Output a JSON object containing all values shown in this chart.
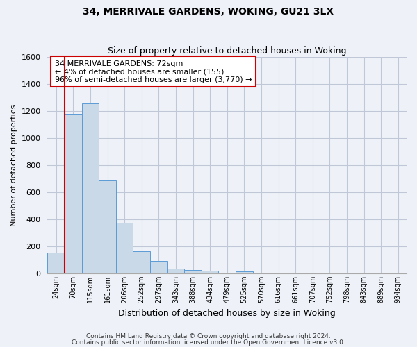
{
  "title": "34, MERRIVALE GARDENS, WOKING, GU21 3LX",
  "subtitle": "Size of property relative to detached houses in Woking",
  "xlabel": "Distribution of detached houses by size in Woking",
  "ylabel": "Number of detached properties",
  "footer_line1": "Contains HM Land Registry data © Crown copyright and database right 2024.",
  "footer_line2": "Contains public sector information licensed under the Open Government Licence v3.0.",
  "bin_labels": [
    "24sqm",
    "70sqm",
    "115sqm",
    "161sqm",
    "206sqm",
    "252sqm",
    "297sqm",
    "343sqm",
    "388sqm",
    "434sqm",
    "479sqm",
    "525sqm",
    "570sqm",
    "616sqm",
    "661sqm",
    "707sqm",
    "752sqm",
    "798sqm",
    "843sqm",
    "889sqm",
    "934sqm"
  ],
  "bar_values": [
    155,
    1180,
    1255,
    685,
    375,
    165,
    90,
    35,
    25,
    20,
    0,
    15,
    0,
    0,
    0,
    0,
    0,
    0,
    0,
    0,
    0
  ],
  "bar_color": "#c9d9e8",
  "bar_edge_color": "#5b9bd5",
  "grid_color": "#c0c8d8",
  "bg_color": "#eef2f8",
  "marker_line_color": "#cc0000",
  "annotation_line1": "34 MERRIVALE GARDENS: 72sqm",
  "annotation_line2": "← 4% of detached houses are smaller (155)",
  "annotation_line3": "96% of semi-detached houses are larger (3,770) →",
  "annotation_box_color": "#ffffff",
  "annotation_box_edge_color": "#cc0000",
  "ylim": [
    0,
    1600
  ],
  "yticks": [
    0,
    200,
    400,
    600,
    800,
    1000,
    1200,
    1400,
    1600
  ]
}
